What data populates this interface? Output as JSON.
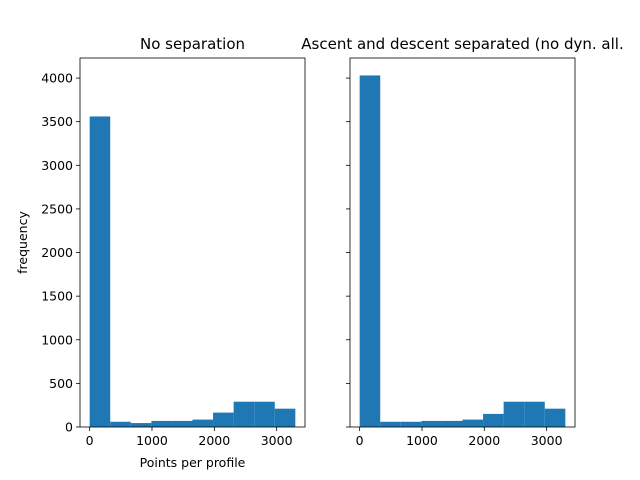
{
  "chart_data": [
    {
      "type": "bar",
      "title": "No separation",
      "xlabel": "Points per profile",
      "ylabel": "frequency",
      "bin_edges": [
        0,
        330,
        660,
        990,
        1320,
        1650,
        1980,
        2310,
        2640,
        2970,
        3300
      ],
      "values": [
        3560,
        60,
        45,
        70,
        70,
        85,
        165,
        290,
        290,
        210
      ],
      "xlim": [
        -155,
        3455
      ],
      "ylim": [
        0,
        4230
      ],
      "xticks": [
        0,
        1000,
        2000,
        3000
      ],
      "yticks": [
        0,
        500,
        1000,
        1500,
        2000,
        2500,
        3000,
        3500,
        4000
      ],
      "color": "#1f77b4"
    },
    {
      "type": "bar",
      "title": "Ascent and descent separated (no dyn. all.",
      "xlabel": "",
      "ylabel": "",
      "bin_edges": [
        0,
        330,
        660,
        990,
        1320,
        1650,
        1980,
        2310,
        2640,
        2970,
        3300
      ],
      "values": [
        4030,
        60,
        60,
        70,
        70,
        85,
        150,
        290,
        290,
        210
      ],
      "xlim": [
        -155,
        3455
      ],
      "ylim": [
        0,
        4230
      ],
      "xticks": [
        0,
        1000,
        2000,
        3000
      ],
      "yticks": [
        0,
        500,
        1000,
        1500,
        2000,
        2500,
        3000,
        3500,
        4000
      ],
      "show_ytick_labels": false,
      "color": "#1f77b4"
    }
  ]
}
